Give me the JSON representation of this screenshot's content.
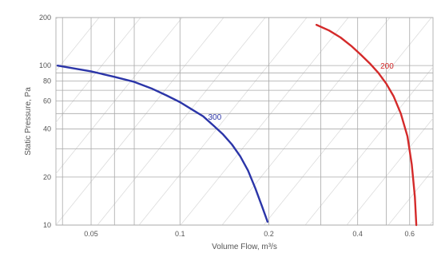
{
  "chart_data": {
    "type": "line",
    "title": "",
    "xlabel": "Volume Flow, m³/s",
    "ylabel": "Static Pressure, Pa",
    "x_scale": "log",
    "y_scale": "log",
    "xlim": [
      0.038,
      0.72
    ],
    "ylim": [
      10,
      200
    ],
    "grid": true,
    "x_ticks": [
      {
        "value": 0.05,
        "label": "0.05"
      },
      {
        "value": 0.1,
        "label": "0.1"
      },
      {
        "value": 0.2,
        "label": "0.2"
      },
      {
        "value": 0.4,
        "label": "0.4"
      },
      {
        "value": 0.6,
        "label": "0.6"
      }
    ],
    "x_gridlines": [
      0.04,
      0.05,
      0.06,
      0.07,
      0.1,
      0.2,
      0.3,
      0.4,
      0.5,
      0.6
    ],
    "y_ticks": [
      {
        "value": 10,
        "label": "10"
      },
      {
        "value": 20,
        "label": "20"
      },
      {
        "value": 40,
        "label": "40"
      },
      {
        "value": 60,
        "label": "60"
      },
      {
        "value": 80,
        "label": "80"
      },
      {
        "value": 100,
        "label": "100"
      },
      {
        "value": 200,
        "label": "200"
      }
    ],
    "y_gridlines": [
      10,
      20,
      30,
      40,
      50,
      60,
      70,
      80,
      90,
      100,
      200
    ],
    "series": [
      {
        "name": "",
        "label": "300",
        "label_at": {
          "x": 0.12,
          "y": 48
        },
        "color": "#2b35a8",
        "points": [
          {
            "x": 0.0385,
            "y": 100
          },
          {
            "x": 0.05,
            "y": 92
          },
          {
            "x": 0.06,
            "y": 85
          },
          {
            "x": 0.07,
            "y": 79
          },
          {
            "x": 0.08,
            "y": 72
          },
          {
            "x": 0.09,
            "y": 65
          },
          {
            "x": 0.1,
            "y": 59
          },
          {
            "x": 0.11,
            "y": 53
          },
          {
            "x": 0.12,
            "y": 48
          },
          {
            "x": 0.13,
            "y": 42
          },
          {
            "x": 0.14,
            "y": 37
          },
          {
            "x": 0.15,
            "y": 32
          },
          {
            "x": 0.16,
            "y": 27
          },
          {
            "x": 0.17,
            "y": 22
          },
          {
            "x": 0.18,
            "y": 17
          },
          {
            "x": 0.19,
            "y": 13
          },
          {
            "x": 0.198,
            "y": 10.5
          }
        ]
      },
      {
        "name": "",
        "label": "200",
        "label_at": {
          "x": 0.46,
          "y": 100
        },
        "color": "#d42a2a",
        "points": [
          {
            "x": 0.29,
            "y": 180
          },
          {
            "x": 0.32,
            "y": 166
          },
          {
            "x": 0.35,
            "y": 150
          },
          {
            "x": 0.38,
            "y": 133
          },
          {
            "x": 0.41,
            "y": 117
          },
          {
            "x": 0.44,
            "y": 103
          },
          {
            "x": 0.47,
            "y": 90
          },
          {
            "x": 0.5,
            "y": 77
          },
          {
            "x": 0.53,
            "y": 64
          },
          {
            "x": 0.56,
            "y": 50
          },
          {
            "x": 0.59,
            "y": 36
          },
          {
            "x": 0.61,
            "y": 24
          },
          {
            "x": 0.625,
            "y": 15
          },
          {
            "x": 0.632,
            "y": 10
          }
        ]
      }
    ]
  }
}
